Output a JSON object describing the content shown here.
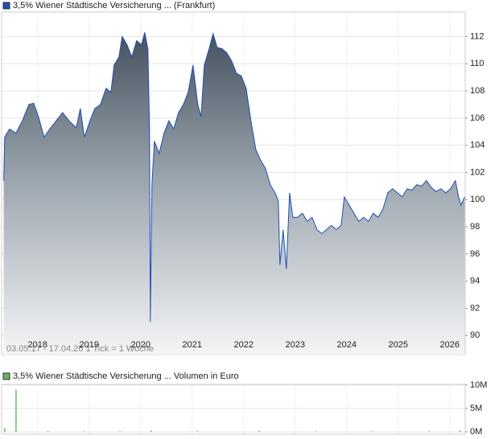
{
  "chart_data": [
    {
      "type": "area",
      "legend_position": "top-left",
      "grid": true,
      "annotations": [
        "03.05.17 - 17.04.26   1 Tick = 1 Woche"
      ],
      "xlim": [
        2017.3,
        2026.3
      ],
      "xticks": [
        2018,
        2019,
        2020,
        2021,
        2022,
        2023,
        2024,
        2025,
        2026
      ],
      "ylim": [
        88.6,
        113.8
      ],
      "yticks": [
        90,
        92,
        94,
        96,
        98,
        100,
        102,
        104,
        106,
        108,
        110,
        112
      ],
      "series": [
        {
          "name": "3,5% Wiener Städtische Versicherung ... (Frankfurt)",
          "color": "#1f4fb5",
          "x": [
            2017.34,
            2017.359,
            2017.453,
            2017.578,
            2017.703,
            2017.828,
            2017.922,
            2018.016,
            2018.125,
            2018.234,
            2018.359,
            2018.484,
            2018.609,
            2018.75,
            2018.828,
            2018.906,
            2019.016,
            2019.109,
            2019.219,
            2019.328,
            2019.422,
            2019.484,
            2019.578,
            2019.641,
            2019.734,
            2019.828,
            2019.922,
            2020.016,
            2020.078,
            2020.141,
            2020.172,
            2020.188,
            2020.219,
            2020.266,
            2020.359,
            2020.453,
            2020.547,
            2020.641,
            2020.734,
            2020.828,
            2020.922,
            2021.016,
            2021.109,
            2021.172,
            2021.234,
            2021.328,
            2021.406,
            2021.484,
            2021.578,
            2021.672,
            2021.766,
            2021.859,
            2021.953,
            2022.047,
            2022.141,
            2022.234,
            2022.328,
            2022.422,
            2022.516,
            2022.609,
            2022.672,
            2022.703,
            2022.766,
            2022.828,
            2022.891,
            2022.953,
            2023.047,
            2023.141,
            2023.234,
            2023.328,
            2023.422,
            2023.516,
            2023.609,
            2023.703,
            2023.797,
            2023.891,
            2023.953,
            2024.047,
            2024.141,
            2024.234,
            2024.328,
            2024.422,
            2024.516,
            2024.609,
            2024.703,
            2024.797,
            2024.891,
            2024.984,
            2025.078,
            2025.172,
            2025.266,
            2025.359,
            2025.453,
            2025.547,
            2025.641,
            2025.734,
            2025.828,
            2025.922,
            2026.016,
            2026.109,
            2026.172,
            2026.219,
            2026.29
          ],
          "values": [
            101.4,
            104.6,
            105.2,
            104.9,
            105.8,
            107.0,
            107.1,
            106.1,
            104.6,
            105.2,
            105.8,
            106.4,
            105.8,
            105.3,
            106.7,
            104.6,
            105.8,
            106.7,
            107.0,
            108.2,
            107.9,
            109.9,
            110.5,
            112.0,
            111.4,
            110.5,
            111.7,
            111.4,
            112.3,
            111.1,
            105.2,
            91.0,
            101.1,
            104.3,
            103.4,
            104.9,
            105.8,
            105.2,
            106.4,
            107.0,
            107.9,
            109.9,
            107.0,
            106.1,
            109.9,
            111.1,
            112.2,
            111.2,
            111.1,
            110.8,
            110.2,
            109.3,
            109.1,
            108.2,
            105.8,
            103.7,
            102.9,
            102.3,
            101.1,
            100.5,
            99.9,
            95.2,
            97.8,
            94.9,
            100.5,
            98.7,
            98.7,
            99.0,
            98.4,
            98.7,
            97.8,
            97.5,
            97.8,
            98.1,
            97.8,
            98.1,
            100.2,
            99.6,
            99.0,
            98.4,
            98.7,
            98.4,
            99.0,
            98.7,
            99.3,
            100.5,
            100.8,
            100.5,
            100.2,
            100.8,
            100.7,
            101.1,
            101.0,
            101.4,
            100.9,
            100.6,
            100.8,
            100.5,
            100.8,
            101.4,
            100.2,
            99.6,
            100.2
          ]
        }
      ]
    },
    {
      "type": "bar",
      "legend_position": "top-left",
      "grid": true,
      "xlim": [
        2017.3,
        2026.3
      ],
      "ylim": [
        -500000,
        10150000
      ],
      "yticks": [
        {
          "value": 0,
          "label": "0M"
        },
        {
          "value": 5000000,
          "label": "5M"
        },
        {
          "value": 10000000,
          "label": "10M"
        }
      ],
      "series": [
        {
          "name": "3,5% Wiener Städtische Versicherung ... Volumen in Euro",
          "color": "#5cb85c",
          "x": [
            2017.36,
            2017.58,
            2018.2,
            2018.9,
            2019.6,
            2020.2,
            2021.1,
            2022.3,
            2023.4,
            2024.5,
            2025.6,
            2026.2
          ],
          "values": [
            800000,
            9000000,
            200000,
            150000,
            150000,
            300000,
            150000,
            200000,
            150000,
            150000,
            150000,
            300000
          ]
        }
      ]
    }
  ]
}
